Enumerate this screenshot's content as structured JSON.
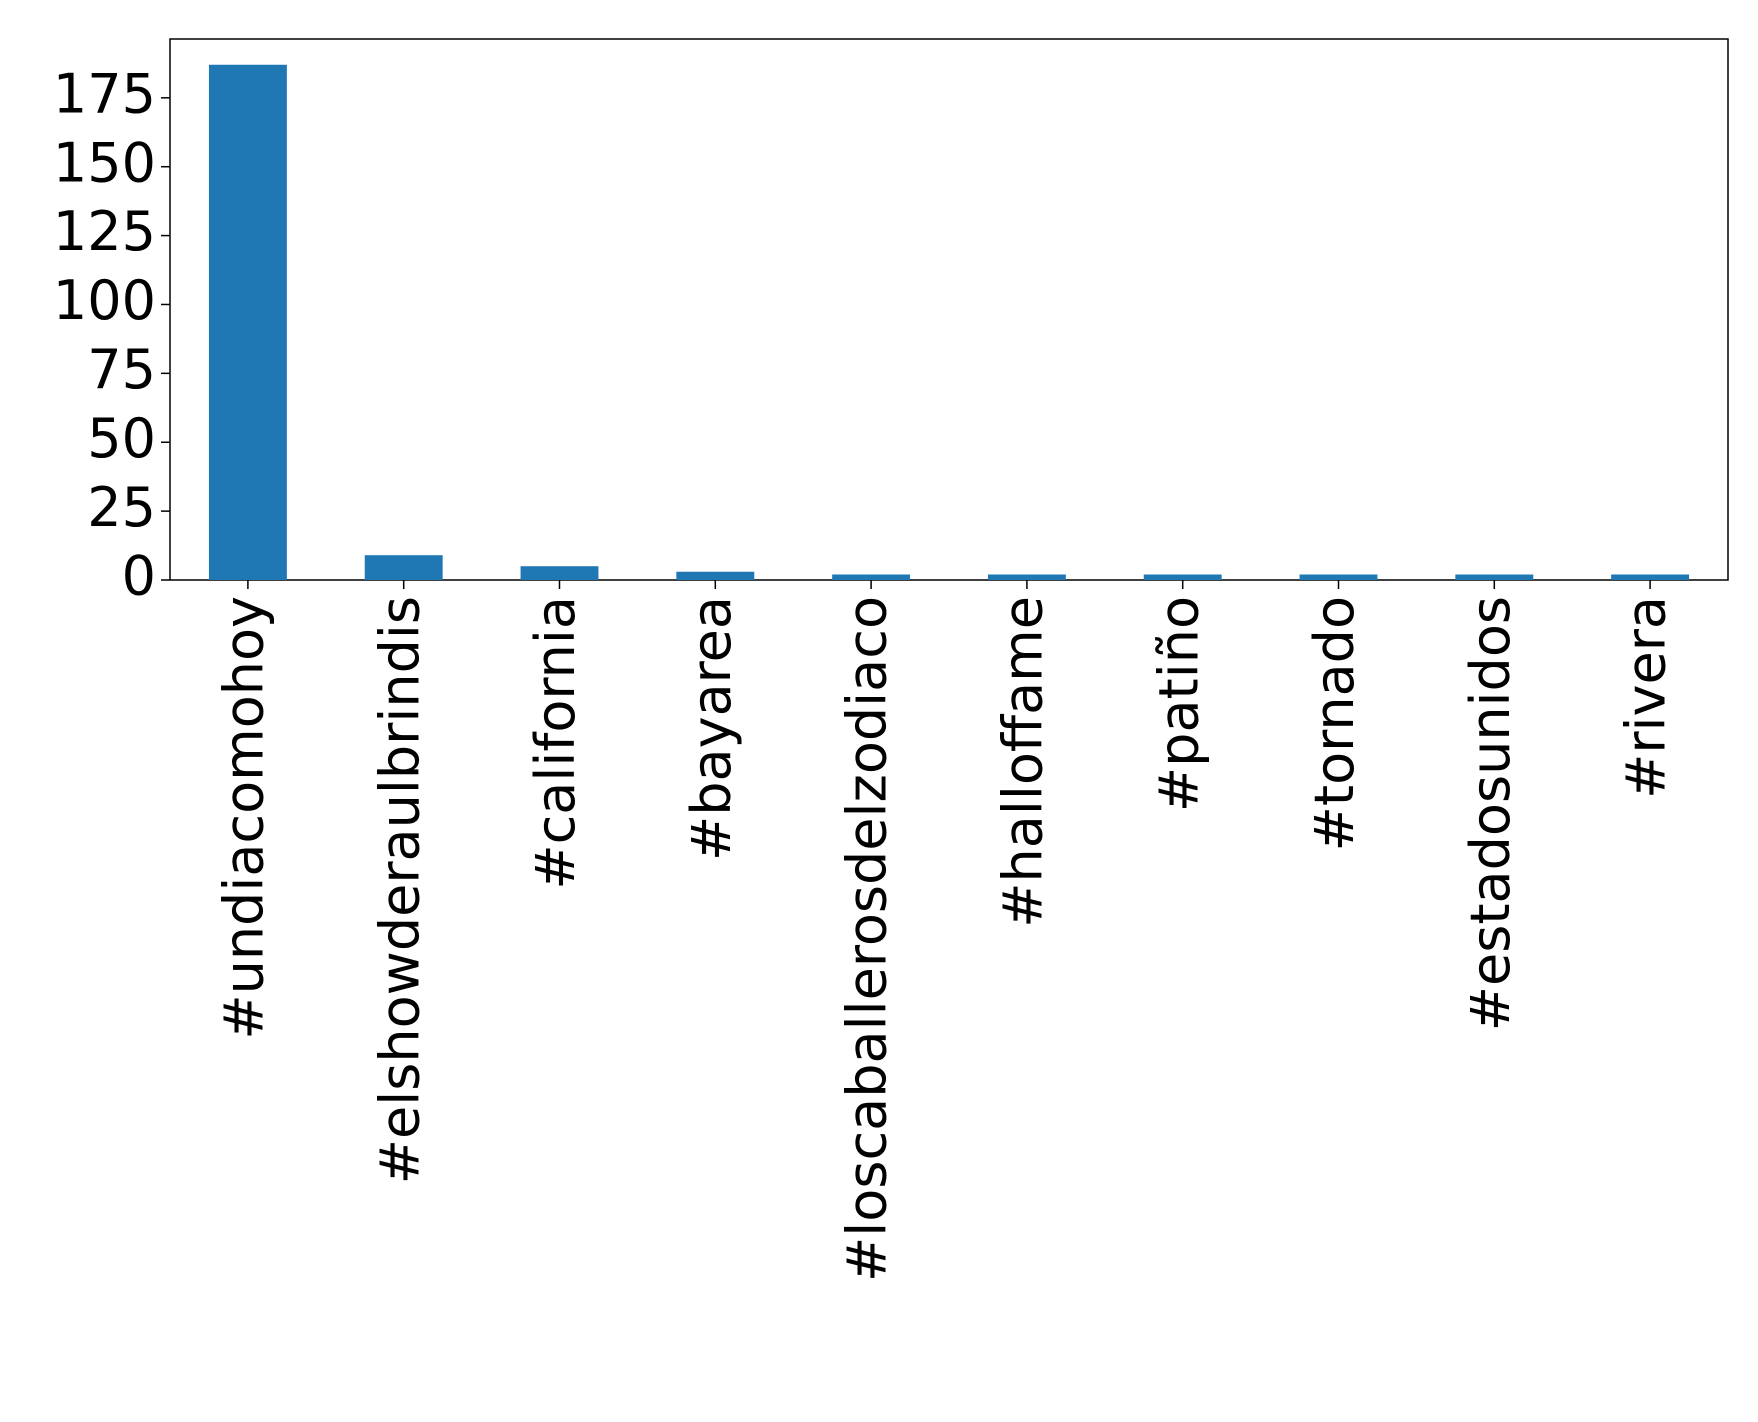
{
  "chart_data": {
    "type": "bar",
    "categories": [
      "#undiacomohoy",
      "#elshowderaulbrindis",
      "#california",
      "#bayarea",
      "#loscaballerosdelzodiaco",
      "#halloffame",
      "#patiño",
      "#tornado",
      "#estadosunidos",
      "#rivera"
    ],
    "values": [
      187,
      9,
      5,
      3,
      2,
      2,
      2,
      2,
      2,
      2
    ],
    "color": "#1f77b4",
    "ylim": [
      0,
      196.35
    ],
    "yticks": [
      0,
      25,
      50,
      75,
      100,
      125,
      150,
      175
    ],
    "grid": false
  }
}
